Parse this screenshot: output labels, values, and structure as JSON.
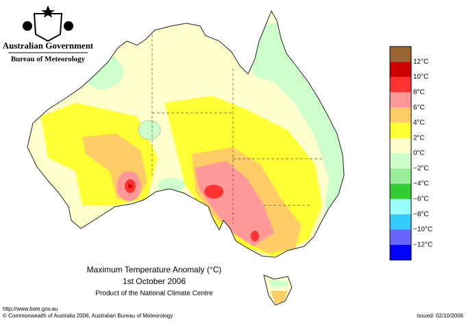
{
  "header": {
    "agency": "Australian Government",
    "bureau": "Bureau of Meteorology"
  },
  "legend": {
    "labels": [
      "12°C",
      "10°C",
      "8°C",
      "6°C",
      "4°C",
      "2°C",
      "0°C",
      "−2°C",
      "−4°C",
      "−6°C",
      "−8°C",
      "−10°C",
      "−12°C"
    ],
    "colors": [
      "#996633",
      "#cc0000",
      "#ff3333",
      "#ff9999",
      "#ffcc66",
      "#ffff33",
      "#ffffcc",
      "#ccffcc",
      "#99ee99",
      "#33cc33",
      "#99ffff",
      "#33ccff",
      "#6666ff",
      "#0000ff"
    ]
  },
  "caption": {
    "title": "Maximum Temperature Anomaly (°C)",
    "date": "1st October 2006",
    "credit": "Product of the National Climate Centre"
  },
  "footer": {
    "url": "http://www.bom.gov.au",
    "copyright": "© Commonwealth of Australia 2006, Australian Bureau of Meteorology",
    "issued": "Issued: 02/10/2006"
  }
}
